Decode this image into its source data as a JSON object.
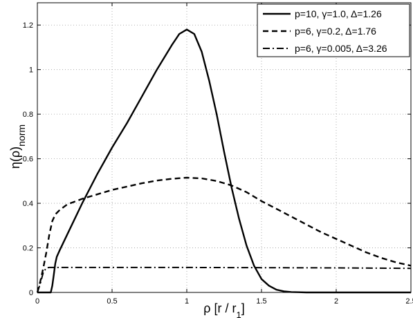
{
  "chart_data": {
    "type": "line",
    "title": "",
    "xlabel": "ρ  [r / r₁]",
    "ylabel": "η(ρ)norm",
    "ylabel_main": "η(ρ)",
    "ylabel_sub": "norm",
    "xlabel_main": "ρ  [r / r",
    "xlabel_sub": "1",
    "xlabel_end": "]",
    "xlim": [
      0,
      2.5
    ],
    "ylim": [
      0,
      1.3
    ],
    "xticks": [
      0,
      0.5,
      1,
      1.5,
      2,
      2.5
    ],
    "xtick_labels": [
      "0",
      "0.5",
      "1",
      "1.5",
      "2",
      "2.5"
    ],
    "yticks": [
      0,
      0.2,
      0.4,
      0.6,
      0.8,
      1.0,
      1.2
    ],
    "ytick_labels": [
      "0",
      "0.2",
      "0.4",
      "0.6",
      "0.8",
      "1",
      "1.2"
    ],
    "grid": true,
    "legend_position": "top-right",
    "series": [
      {
        "name": "p=10, γ=1.0, Δ=1.26",
        "style": "solid",
        "x": [
          0,
          0.09,
          0.1,
          0.11,
          0.12,
          0.13,
          0.15,
          0.2,
          0.3,
          0.4,
          0.5,
          0.6,
          0.7,
          0.8,
          0.9,
          0.95,
          1.0,
          1.05,
          1.1,
          1.15,
          1.2,
          1.25,
          1.3,
          1.35,
          1.4,
          1.45,
          1.5,
          1.55,
          1.6,
          1.65,
          1.7,
          1.75,
          1.8,
          2.0,
          2.5
        ],
        "y": [
          0,
          0,
          0.03,
          0.08,
          0.13,
          0.16,
          0.19,
          0.26,
          0.4,
          0.53,
          0.65,
          0.76,
          0.88,
          1.0,
          1.11,
          1.16,
          1.18,
          1.16,
          1.08,
          0.95,
          0.8,
          0.63,
          0.47,
          0.33,
          0.21,
          0.12,
          0.06,
          0.03,
          0.012,
          0.005,
          0.002,
          0.001,
          0,
          0,
          0
        ]
      },
      {
        "name": "p=6, γ=0.2, Δ=1.76",
        "style": "dashed",
        "x": [
          0,
          0.02,
          0.04,
          0.06,
          0.08,
          0.1,
          0.12,
          0.15,
          0.2,
          0.3,
          0.4,
          0.5,
          0.6,
          0.7,
          0.8,
          0.9,
          1.0,
          1.1,
          1.2,
          1.3,
          1.4,
          1.5,
          1.6,
          1.7,
          1.8,
          1.9,
          2.0,
          2.1,
          2.2,
          2.3,
          2.4,
          2.5
        ],
        "y": [
          0,
          0.05,
          0.11,
          0.18,
          0.26,
          0.32,
          0.35,
          0.37,
          0.395,
          0.42,
          0.44,
          0.46,
          0.475,
          0.49,
          0.502,
          0.51,
          0.515,
          0.512,
          0.5,
          0.48,
          0.45,
          0.41,
          0.375,
          0.34,
          0.305,
          0.27,
          0.24,
          0.21,
          0.18,
          0.155,
          0.135,
          0.12
        ]
      },
      {
        "name": "p=6, γ=0.005, Δ=3.26",
        "style": "dashdot",
        "x": [
          0,
          0.02,
          0.04,
          0.06,
          0.08,
          0.1,
          0.5,
          1.0,
          1.5,
          2.0,
          2.5
        ],
        "y": [
          0,
          0.04,
          0.09,
          0.11,
          0.112,
          0.112,
          0.112,
          0.112,
          0.111,
          0.11,
          0.108
        ]
      }
    ]
  }
}
